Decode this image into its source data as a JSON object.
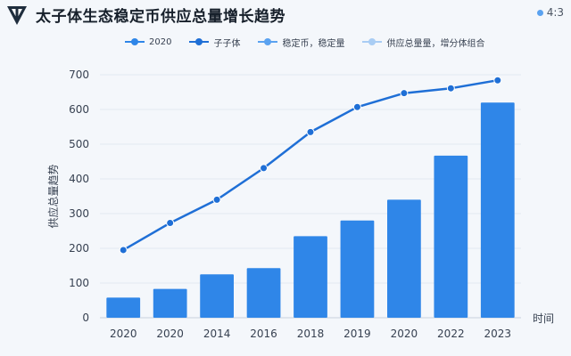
{
  "header": {
    "title": "太子体生态稳定币供应总量增长趋势",
    "ratio": "4:3",
    "logo_icon": "triangle-logo-icon"
  },
  "colors": {
    "bar": "#2f86e8",
    "line": "#1f6fd6",
    "accent": "#5aa2f0",
    "background": "#f4f7fb"
  },
  "chart_data": {
    "type": "bar",
    "title": "太子体生态稳定币供应总量增长趋势",
    "xlabel": "时间",
    "ylabel": "供应总量趋势",
    "ylim": [
      0,
      700
    ],
    "yticks": [
      0,
      100,
      200,
      300,
      400,
      500,
      600,
      700
    ],
    "grid": true,
    "legend_position": "top",
    "legend": [
      {
        "label": "2020",
        "color": "#2f86e8"
      },
      {
        "label": "子子体",
        "color": "#1f6fd6"
      },
      {
        "label": "稳定币，稳定量",
        "color": "#5aa2f0"
      },
      {
        "label": "供应总量量，增分体组合",
        "color": "#a9cdf4"
      }
    ],
    "categories": [
      "2020",
      "2020",
      "2014",
      "2016",
      "2018",
      "2019",
      "2020",
      "2022",
      "2023"
    ],
    "series": [
      {
        "kind": "bar",
        "values": [
          58,
          83,
          125,
          143,
          235,
          280,
          340,
          467,
          620
        ]
      },
      {
        "kind": "line",
        "values": [
          195,
          273,
          340,
          431,
          535,
          607,
          647,
          661,
          684
        ]
      }
    ]
  }
}
